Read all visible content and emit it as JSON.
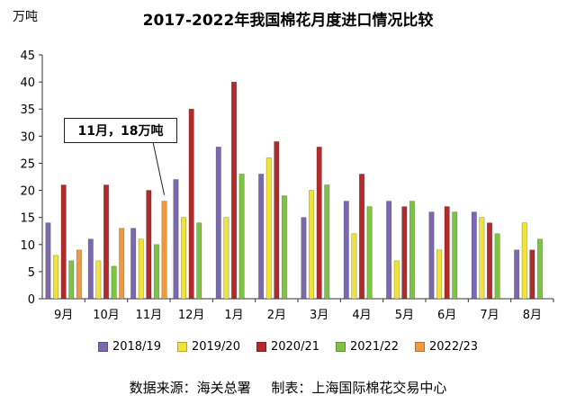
{
  "title": "2017-2022年我国棉花月度进口情况比较",
  "unit_label": "万吨",
  "annotation": "11月，18万吨",
  "source": {
    "data_source": "数据来源：海关总署",
    "made_by": "制表：上海国际棉花交易中心"
  },
  "chart_data": {
    "type": "bar",
    "title": "2017-2022年我国棉花月度进口情况比较",
    "ylabel": "万吨",
    "xlabel": "",
    "ylim": [
      0,
      45
    ],
    "yticks": [
      0,
      5,
      10,
      15,
      20,
      25,
      30,
      35,
      40,
      45
    ],
    "grid": false,
    "legend_position": "bottom",
    "categories": [
      "9月",
      "10月",
      "11月",
      "12月",
      "1月",
      "2月",
      "3月",
      "4月",
      "5月",
      "6月",
      "7月",
      "8月"
    ],
    "series": [
      {
        "name": "2018/19",
        "color": "#7b68ae",
        "values": [
          14,
          11,
          13,
          22,
          28,
          23,
          15,
          18,
          18,
          16,
          16,
          9
        ]
      },
      {
        "name": "2019/20",
        "color": "#f2e33b",
        "values": [
          8,
          7,
          11,
          15,
          15,
          26,
          20,
          12,
          7,
          9,
          15,
          14
        ]
      },
      {
        "name": "2020/21",
        "color": "#b22b2b",
        "values": [
          21,
          21,
          20,
          35,
          40,
          29,
          28,
          23,
          17,
          17,
          14,
          9
        ]
      },
      {
        "name": "2021/22",
        "color": "#7ec444",
        "values": [
          7,
          6,
          10,
          14,
          23,
          19,
          21,
          17,
          18,
          16,
          12,
          11
        ]
      },
      {
        "name": "2022/23",
        "color": "#f09a40",
        "values": [
          9,
          13,
          18,
          null,
          null,
          null,
          null,
          null,
          null,
          null,
          null,
          null
        ]
      }
    ]
  }
}
